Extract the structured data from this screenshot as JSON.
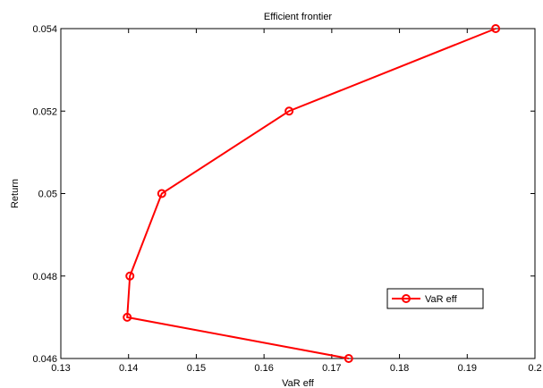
{
  "chart_data": {
    "type": "line",
    "title": "Efficient frontier",
    "xlabel": "VaR eff",
    "ylabel": "Return",
    "xlim": [
      0.13,
      0.2
    ],
    "ylim": [
      0.046,
      0.054
    ],
    "xticks": [
      "0.13",
      "0.14",
      "0.15",
      "0.16",
      "0.17",
      "0.18",
      "0.19",
      "0.2"
    ],
    "yticks": [
      "0.046",
      "0.048",
      "0.05",
      "0.052",
      "0.054"
    ],
    "grid": false,
    "legend_position": "lower-right",
    "series": [
      {
        "name": "VaR eff",
        "color": "#ff0000",
        "marker": "circle",
        "points": [
          {
            "x": 0.1725,
            "y": 0.046
          },
          {
            "x": 0.1398,
            "y": 0.047
          },
          {
            "x": 0.1402,
            "y": 0.048
          },
          {
            "x": 0.1449,
            "y": 0.05
          },
          {
            "x": 0.1637,
            "y": 0.052
          },
          {
            "x": 0.1942,
            "y": 0.054
          }
        ]
      }
    ]
  }
}
